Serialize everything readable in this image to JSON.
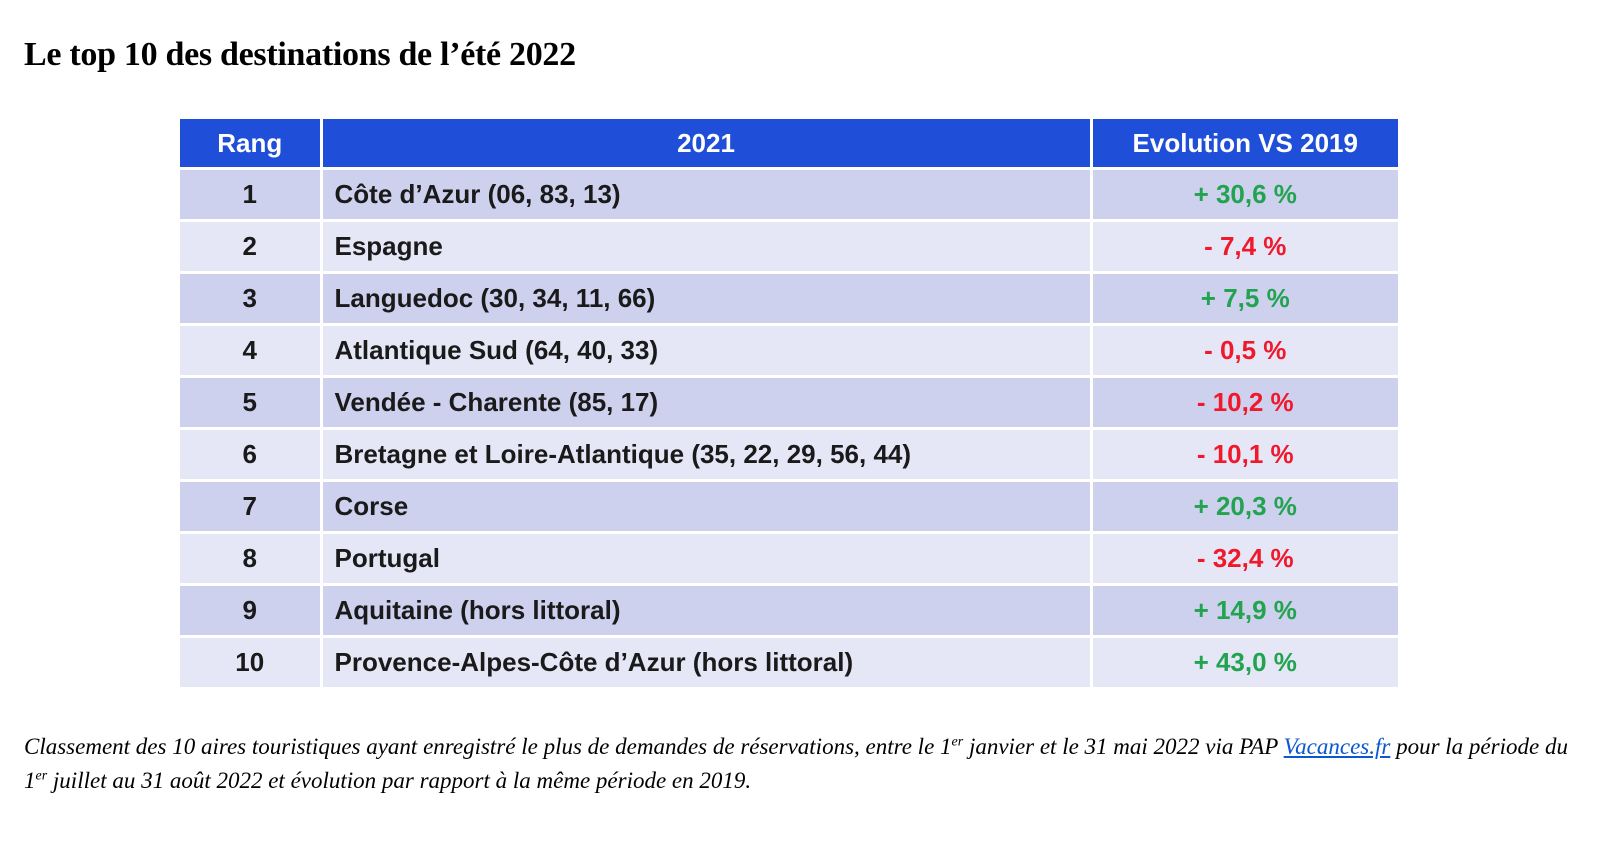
{
  "title": "Le top 10 des destinations de l’été 2022",
  "table": {
    "headers": [
      "Rang",
      "2021",
      "Evolution VS 2019"
    ],
    "rows": [
      {
        "rank": "1",
        "destination": "Côte d’Azur (06, 83, 13)",
        "evolution": "+ 30,6 %",
        "trend": "pos"
      },
      {
        "rank": "2",
        "destination": "Espagne",
        "evolution": "- 7,4 %",
        "trend": "neg"
      },
      {
        "rank": "3",
        "destination": "Languedoc (30, 34, 11, 66)",
        "evolution": "+ 7,5 %",
        "trend": "pos"
      },
      {
        "rank": "4",
        "destination": "Atlantique Sud (64, 40, 33)",
        "evolution": "- 0,5 %",
        "trend": "neg"
      },
      {
        "rank": "5",
        "destination": "Vendée - Charente (85, 17)",
        "evolution": "- 10,2 %",
        "trend": "neg"
      },
      {
        "rank": "6",
        "destination": "Bretagne et Loire-Atlantique (35, 22, 29, 56, 44)",
        "evolution": "- 10,1 %",
        "trend": "neg"
      },
      {
        "rank": "7",
        "destination": "Corse",
        "evolution": "+ 20,3 %",
        "trend": "pos"
      },
      {
        "rank": "8",
        "destination": "Portugal",
        "evolution": "- 32,4 %",
        "trend": "neg"
      },
      {
        "rank": "9",
        "destination": "Aquitaine (hors littoral)",
        "evolution": "+ 14,9 %",
        "trend": "pos"
      },
      {
        "rank": "10",
        "destination": "Provence-Alpes-Côte d’Azur (hors littoral)",
        "evolution": "+ 43,0 %",
        "trend": "pos"
      }
    ]
  },
  "caption": {
    "part1": "Classement des 10 aires touristiques ayant enregistré le plus de demandes de réservations, entre le 1",
    "sup1": "er",
    "part2": " janvier et le 31 mai 2022 via PAP ",
    "link_text": "Vacances.fr",
    "part3": " pour la période du 1",
    "sup2": "er",
    "part4": " juillet au 31 août 2022 et évolution par rapport à la même période en 2019."
  },
  "colors": {
    "header_bg": "#1f4fd8",
    "row_odd": "#cdd1ee",
    "row_even": "#e5e7f7",
    "positive": "#22a34f",
    "negative": "#f0192b",
    "link": "#0b57d0"
  }
}
